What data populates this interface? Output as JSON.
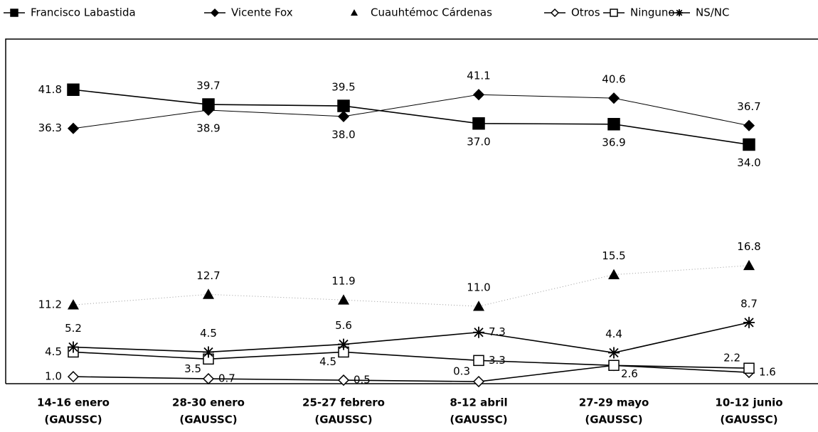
{
  "chart_data": {
    "type": "line",
    "categories": [
      [
        "14-16 enero",
        "(GAUSSC)"
      ],
      [
        "28-30 enero",
        "(GAUSSC)"
      ],
      [
        "25-27 febrero",
        "(GAUSSC)"
      ],
      [
        "8-12 abril",
        "(GAUSSC)"
      ],
      [
        "27-29 mayo",
        "(GAUSSC)"
      ],
      [
        "10-12 junio",
        "(GAUSSC)"
      ]
    ],
    "series": [
      {
        "name": "Francisco Labastida",
        "color": "#000000",
        "marker": "square",
        "line_style": "solid",
        "values": [
          41.8,
          39.7,
          39.5,
          37.0,
          36.9,
          34.0
        ],
        "value_labels": [
          "41.8",
          "39.7",
          "39.5",
          "37.0",
          "36.9",
          "34.0"
        ]
      },
      {
        "name": "Vicente Fox",
        "color": "#000000",
        "marker": "diamond",
        "line_style": "thin",
        "values": [
          36.3,
          38.9,
          38.0,
          41.1,
          40.6,
          36.7
        ],
        "value_labels": [
          "36.3",
          "38.9",
          "38.0",
          "41.1",
          "40.6",
          "36.7"
        ]
      },
      {
        "name": "Cuauhtémoc Cárdenas",
        "color": "#000000",
        "marker": "triangle",
        "line_style": "dotted",
        "values": [
          11.2,
          12.7,
          11.9,
          11.0,
          15.5,
          16.8
        ],
        "value_labels": [
          "11.2",
          "12.7",
          "11.9",
          "11.0",
          "15.5",
          "16.8"
        ]
      },
      {
        "name": "Otros",
        "color": "#000000",
        "marker": "open-diamond",
        "line_style": "solid",
        "values": [
          1.0,
          0.7,
          0.5,
          0.3,
          2.6,
          1.6
        ],
        "value_labels": [
          "1.0",
          "0.7",
          "0.5",
          "0.3",
          "2.6",
          "1.6"
        ]
      },
      {
        "name": "Ninguno",
        "color": "#000000",
        "marker": "open-square",
        "line_style": "solid",
        "values": [
          4.5,
          3.5,
          4.5,
          3.3,
          2.6,
          2.2
        ],
        "value_labels": [
          "4.5",
          "3.5",
          "4.5",
          "3.3",
          null,
          "2.2"
        ]
      },
      {
        "name": "NS/NC",
        "color": "#000000",
        "marker": "asterisk",
        "line_style": "solid",
        "values": [
          5.2,
          4.5,
          5.6,
          7.3,
          4.4,
          8.7
        ]
      }
    ],
    "ylim": [
      0,
      49
    ]
  }
}
